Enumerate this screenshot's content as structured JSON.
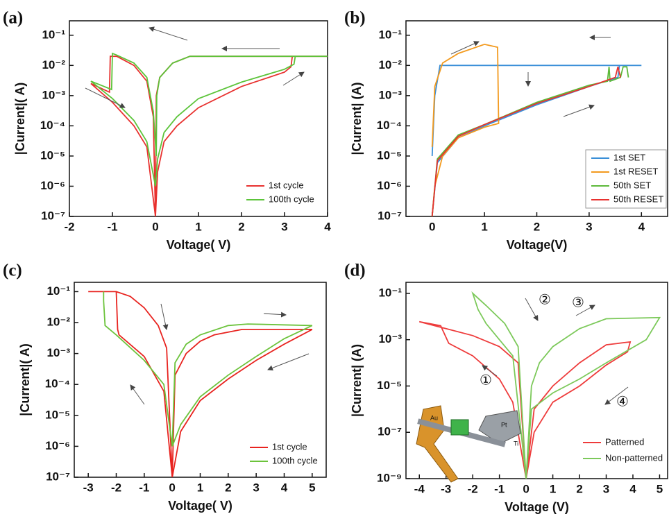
{
  "chart_data": [
    {
      "type": "line",
      "label": "(a)",
      "x_label": "Voltage( V)",
      "y_label": "|Current|( A)",
      "y_scale": "log",
      "xlim": [
        -2,
        4
      ],
      "xticks": [
        -2,
        -1,
        0,
        1,
        2,
        3,
        4
      ],
      "ylim": [
        1e-07,
        0.3
      ],
      "yticks": [
        {
          "value": 1e-07,
          "label": "10⁻⁷"
        },
        {
          "value": 1e-06,
          "label": "10⁻⁶"
        },
        {
          "value": 1e-05,
          "label": "10⁻⁵"
        },
        {
          "value": 0.0001,
          "label": "10⁻⁴"
        },
        {
          "value": 0.001,
          "label": "10⁻³"
        },
        {
          "value": 0.01,
          "label": "10⁻²"
        },
        {
          "value": 0.1,
          "label": "10⁻¹"
        }
      ],
      "legend": "lower right",
      "series": [
        {
          "name": "1st cycle",
          "color": "#e8312f",
          "x": [
            0,
            0.05,
            0.2,
            0.5,
            1,
            2,
            3,
            3.15,
            3.18,
            4,
            0.8,
            0.4,
            0.1,
            0.02,
            0,
            -0.05,
            -0.2,
            -0.5,
            -0.9,
            -1.05,
            -1.07,
            -1.5,
            -1,
            -0.5,
            -0.2,
            0
          ],
          "values": [
            1e-07,
            3e-06,
            3e-05,
            0.0001,
            0.0004,
            0.002,
            0.006,
            0.009,
            0.02,
            0.02,
            0.02,
            0.012,
            0.004,
            0.001,
            1e-07,
            0.0002,
            0.003,
            0.01,
            0.02,
            0.02,
            0.0013,
            0.0025,
            0.0006,
            0.0001,
            2e-05,
            1e-07
          ]
        },
        {
          "name": "100th cycle",
          "color": "#5cc43a",
          "x": [
            0,
            0.05,
            0.2,
            0.5,
            1,
            2,
            3,
            3.22,
            3.25,
            4,
            0.8,
            0.4,
            0.1,
            0.03,
            0.02,
            -0.05,
            -0.2,
            -0.5,
            -0.9,
            -1,
            -1.02,
            -1.5,
            -1,
            -0.5,
            -0.2,
            0
          ],
          "values": [
            1e-06,
            8e-06,
            6e-05,
            0.0002,
            0.0008,
            0.0028,
            0.0075,
            0.011,
            0.02,
            0.02,
            0.02,
            0.012,
            0.004,
            0.001,
            1e-05,
            0.0003,
            0.004,
            0.012,
            0.022,
            0.025,
            0.0016,
            0.003,
            0.0008,
            0.00015,
            3e-05,
            1e-06
          ]
        }
      ]
    },
    {
      "type": "line",
      "label": "(b)",
      "x_label": "Voltage(V)",
      "y_label": "|Current| (A)",
      "y_scale": "log",
      "xlim": [
        -0.5,
        4.5
      ],
      "xticks": [
        0,
        1,
        2,
        3,
        4
      ],
      "ylim": [
        1e-07,
        0.3
      ],
      "yticks": [
        {
          "value": 1e-07,
          "label": "10⁻⁷"
        },
        {
          "value": 1e-06,
          "label": "10⁻⁶"
        },
        {
          "value": 1e-05,
          "label": "10⁻⁵"
        },
        {
          "value": 0.0001,
          "label": "10⁻⁴"
        },
        {
          "value": 0.001,
          "label": "10⁻³"
        },
        {
          "value": 0.01,
          "label": "10⁻²"
        },
        {
          "value": 0.1,
          "label": "10⁻¹"
        }
      ],
      "legend": "lower right",
      "series": [
        {
          "name": "1st SET",
          "color": "#3a8fd8",
          "x": [
            0,
            0.1,
            0.5,
            1,
            2,
            3,
            3.55,
            3.58,
            4,
            0.15,
            0.05,
            0
          ],
          "values": [
            1e-07,
            6e-06,
            4e-05,
            0.0001,
            0.0005,
            0.002,
            0.004,
            0.01,
            0.01,
            0.01,
            0.001,
            1e-05
          ]
        },
        {
          "name": "1st RESET",
          "color": "#f39a1e",
          "x": [
            0,
            0.05,
            0.2,
            0.5,
            1,
            1.27,
            1.25,
            1,
            0.5,
            0.2,
            0.05,
            0
          ],
          "values": [
            1e-07,
            1e-06,
            1e-05,
            4e-05,
            9e-05,
            0.00012,
            0.04,
            0.05,
            0.025,
            0.012,
            0.002,
            2e-05
          ]
        },
        {
          "name": "50th SET",
          "color": "#5db93a",
          "x": [
            0,
            0.1,
            0.5,
            1,
            2,
            3,
            3.35,
            3.38,
            3.4,
            3.6,
            3.65,
            3.72,
            3.75
          ],
          "values": [
            1e-07,
            8e-06,
            5e-05,
            0.00011,
            0.0006,
            0.0022,
            0.003,
            0.009,
            0.003,
            0.004,
            0.009,
            0.009,
            0.004
          ]
        },
        {
          "name": "50th RESET",
          "color": "#e8312f",
          "x": [
            0,
            0.1,
            0.5,
            1,
            2,
            3,
            3.5,
            3.55,
            3.6
          ],
          "values": [
            1e-07,
            7e-06,
            4.5e-05,
            0.00011,
            0.00055,
            0.002,
            0.004,
            0.009,
            0.004
          ]
        }
      ]
    },
    {
      "type": "line",
      "label": "(c)",
      "x_label": "Voltage( V)",
      "y_label": "|Current|( A)",
      "y_scale": "log",
      "xlim": [
        -3.5,
        5.5
      ],
      "xticks": [
        -3,
        -2,
        -1,
        0,
        1,
        2,
        3,
        4,
        5
      ],
      "ylim": [
        1e-07,
        0.2
      ],
      "yticks": [
        {
          "value": 1e-07,
          "label": "10⁻⁷"
        },
        {
          "value": 1e-06,
          "label": "10⁻⁶"
        },
        {
          "value": 1e-05,
          "label": "10⁻⁵"
        },
        {
          "value": 0.0001,
          "label": "10⁻⁴"
        },
        {
          "value": 0.001,
          "label": "10⁻³"
        },
        {
          "value": 0.01,
          "label": "10⁻²"
        },
        {
          "value": 0.1,
          "label": "10⁻¹"
        }
      ],
      "legend": "lower right",
      "series": [
        {
          "name": "1st cycle",
          "color": "#e8231f",
          "x": [
            0,
            0.1,
            0.5,
            1,
            1.5,
            2.5,
            5,
            4,
            3,
            2,
            1,
            0.3,
            0,
            -0.3,
            -1,
            -1.9,
            -1.95,
            -2,
            -3,
            -2,
            -1.5,
            -1,
            -0.5,
            -0.2,
            0
          ],
          "values": [
            1e-07,
            0.0002,
            0.001,
            0.0025,
            0.004,
            0.006,
            0.006,
            0.002,
            0.0006,
            0.00015,
            3e-05,
            3e-06,
            1e-07,
            6e-05,
            0.0008,
            0.004,
            0.006,
            0.1,
            0.1,
            0.1,
            0.07,
            0.03,
            0.008,
            0.0015,
            1e-07
          ]
        },
        {
          "name": "100th cycle",
          "color": "#6cc33c",
          "x": [
            0,
            0.1,
            0.5,
            1,
            2,
            2.7,
            5,
            4,
            3,
            2,
            1,
            0.3,
            0,
            -0.3,
            -1,
            -2,
            -2.4,
            -2.45,
            -2.45
          ],
          "values": [
            1e-06,
            0.0005,
            0.002,
            0.004,
            0.008,
            0.009,
            0.008,
            0.003,
            0.0008,
            0.0002,
            4e-05,
            5e-06,
            1e-06,
            0.0001,
            0.0006,
            0.004,
            0.008,
            0.05,
            0.1
          ]
        }
      ]
    },
    {
      "type": "line",
      "label": "(d)",
      "x_label": "Voltage (V)",
      "y_label": "|Current| (A)",
      "y_scale": "log",
      "xlim": [
        -4.5,
        5.3
      ],
      "xticks": [
        -4,
        -3,
        -2,
        -1,
        0,
        1,
        2,
        3,
        4,
        5
      ],
      "ylim": [
        1e-09,
        0.3
      ],
      "yticks": [
        {
          "value": 1e-09,
          "label": "10⁻⁹"
        },
        {
          "value": 1e-07,
          "label": "10⁻⁷"
        },
        {
          "value": 1e-05,
          "label": "10⁻⁵"
        },
        {
          "value": 0.001,
          "label": "10⁻³"
        },
        {
          "value": 0.1,
          "label": "10⁻¹"
        }
      ],
      "legend": "lower right",
      "annotations": [
        "①",
        "②",
        "③",
        "④"
      ],
      "inset_labels": [
        "Au",
        "Pt",
        "Ti"
      ],
      "series": [
        {
          "name": "Patterned",
          "color": "#ee3b3b",
          "x": [
            0,
            0.3,
            1,
            2,
            3,
            3.9,
            3.8,
            3,
            2,
            1,
            0.3,
            0,
            -0.5,
            -1,
            -2,
            -2.9,
            -3.2,
            -4,
            -3,
            -2,
            -1,
            -0.3,
            0
          ],
          "values": [
            1e-09,
            1e-06,
            1e-05,
            0.0001,
            0.0006,
            0.0008,
            0.0003,
            8e-05,
            1e-05,
            2e-06,
            1e-07,
            1e-09,
            2e-06,
            2e-05,
            0.0002,
            0.0007,
            0.004,
            0.006,
            0.003,
            0.0015,
            0.0005,
            0.0001,
            1e-09
          ]
        },
        {
          "name": "Non-patterned",
          "color": "#7cc95a",
          "x": [
            0,
            0.2,
            0.5,
            1,
            2,
            3,
            5,
            4.5,
            3,
            2,
            1,
            0.2,
            0,
            -0.3,
            -0.8,
            -1.5,
            -2,
            -1.8,
            -1.5,
            -1,
            -0.5,
            0
          ],
          "values": [
            1e-09,
            1e-05,
            0.0001,
            0.0005,
            0.003,
            0.008,
            0.009,
            0.001,
            0.0001,
            2e-05,
            5e-06,
            1e-06,
            1e-09,
            0.0005,
            0.005,
            0.03,
            0.1,
            0.02,
            0.005,
            0.001,
            0.0002,
            1e-09
          ]
        }
      ]
    }
  ]
}
